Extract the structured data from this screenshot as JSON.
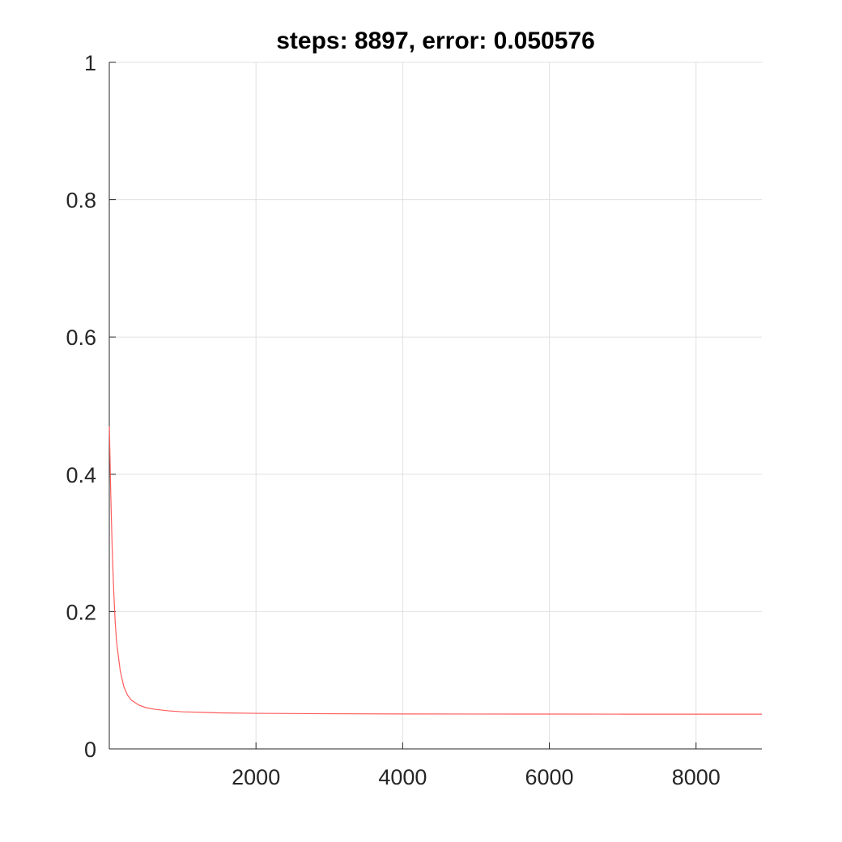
{
  "chart_data": {
    "type": "line",
    "title": "steps: 8897, error: 0.050576",
    "xlabel": "",
    "ylabel": "",
    "xlim": [
      0,
      8897
    ],
    "ylim": [
      0,
      1
    ],
    "xticks": [
      2000,
      4000,
      6000,
      8000
    ],
    "xtick_labels": [
      "2000",
      "4000",
      "6000",
      "8000"
    ],
    "yticks": [
      0,
      0.2,
      0.4,
      0.6,
      0.8,
      1
    ],
    "ytick_labels": [
      "0",
      "0.2",
      "0.4",
      "0.6",
      "0.8",
      "1"
    ],
    "grid": true,
    "legend": "none",
    "colors": {
      "line": "#ff5c5c",
      "grid": "#e0e0e0",
      "axis": "#262626"
    },
    "series": [
      {
        "x": [
          1,
          20,
          40,
          60,
          80,
          100,
          150,
          200,
          250,
          300,
          400,
          500,
          600,
          800,
          1000,
          1500,
          2000,
          3000,
          4000,
          5000,
          6000,
          7000,
          8000,
          8897
        ],
        "values": [
          0.47,
          0.37,
          0.29,
          0.23,
          0.185,
          0.155,
          0.113,
          0.09,
          0.078,
          0.071,
          0.064,
          0.06,
          0.058,
          0.0555,
          0.054,
          0.0525,
          0.0518,
          0.0512,
          0.0509,
          0.0508,
          0.0507,
          0.0506,
          0.05058,
          0.050576
        ]
      }
    ]
  }
}
